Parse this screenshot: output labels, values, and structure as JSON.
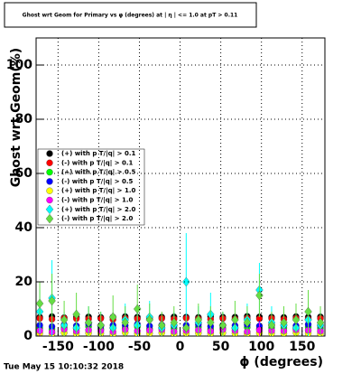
{
  "chart_data": {
    "type": "scatter",
    "title": "Ghost wrt Geom for Primary vs φ (degrees) at | η | <= 1.0 at pT > 0.11",
    "x_label": "ϕ (degrees)",
    "y_label": "Ghost wrt Geom(%)",
    "timestamp": "Tue May 15 10:10:32 2018",
    "xlim": [
      -177,
      178
    ],
    "ylim": [
      0,
      110
    ],
    "xticks": [
      -150,
      -100,
      -50,
      0,
      50,
      100,
      150
    ],
    "yticks": [
      0,
      20,
      40,
      60,
      80,
      100
    ],
    "grid": true,
    "legend": "upper left",
    "x": [
      -172.5,
      -157.5,
      -142.5,
      -127.5,
      -112.5,
      -97.5,
      -82.5,
      -67.5,
      -52.5,
      -37.5,
      -22.5,
      -7.5,
      7.5,
      22.5,
      37.5,
      52.5,
      67.5,
      82.5,
      97.5,
      112.5,
      127.5,
      142.5,
      157.5,
      172.5
    ],
    "series": [
      {
        "name": "(+) with p T/|q| > 0.1",
        "color": "#000000",
        "marker": "circle",
        "values": [
          7,
          7.2,
          6.8,
          7,
          7.1,
          6.9,
          7,
          7.2,
          7,
          6.8,
          7,
          7.1,
          7,
          6.9,
          7.2,
          7,
          7,
          7.3,
          7.1,
          7,
          6.9,
          7.2,
          7,
          7.1
        ],
        "errors": [
          0.5,
          0.5,
          0.5,
          0.5,
          0.5,
          0.5,
          0.5,
          0.5,
          0.5,
          0.5,
          0.5,
          0.5,
          0.5,
          0.5,
          0.5,
          0.5,
          0.5,
          0.5,
          0.5,
          0.5,
          0.5,
          0.5,
          0.5,
          0.5
        ]
      },
      {
        "name": "(-) with p T/|q| > 0.1",
        "color": "#ff0000",
        "marker": "circle",
        "values": [
          6.5,
          6.2,
          6.6,
          6.4,
          6.3,
          6.5,
          6.1,
          6.6,
          6.4,
          6.2,
          6.5,
          6.3,
          6.6,
          6.4,
          6.2,
          6.5,
          6.3,
          6.6,
          6.4,
          6.5,
          6.2,
          6.6,
          6.3,
          6.5
        ],
        "errors": [
          1,
          1,
          1,
          1,
          1,
          1,
          1,
          1,
          1,
          1,
          1,
          1,
          1,
          1,
          1,
          1,
          1,
          1,
          1,
          1,
          1,
          1,
          1,
          1
        ]
      },
      {
        "name": "(+) with p T/|q| > 0.5",
        "color": "#00ff00",
        "marker": "circle",
        "values": [
          3,
          2.5,
          3.2,
          2.8,
          3.5,
          2.6,
          3,
          2.9,
          3.4,
          2.7,
          3.1,
          2.8,
          3,
          3.3,
          2.6,
          3,
          2.9,
          3.2,
          2.7,
          3.1,
          3,
          2.8,
          3.3,
          2.9
        ],
        "errors": [
          2,
          2,
          2,
          2,
          2,
          2,
          2,
          2,
          2,
          2,
          2,
          2,
          2,
          2,
          2,
          2,
          2,
          2,
          2,
          2,
          2,
          2,
          2,
          2
        ]
      },
      {
        "name": "(-) with p T/|q| > 0.5",
        "color": "#0000ff",
        "marker": "circle",
        "values": [
          4,
          3.5,
          4.2,
          3.8,
          4.5,
          3.6,
          4,
          3.9,
          4.4,
          3.7,
          4.1,
          3.8,
          4,
          4.3,
          3.6,
          4,
          3.9,
          4.2,
          3.7,
          4.1,
          4,
          3.8,
          4.3,
          3.9
        ],
        "errors": [
          2,
          2,
          2,
          2,
          2,
          2,
          2,
          2,
          2,
          2,
          2,
          2,
          2,
          2,
          2,
          2,
          2,
          2,
          2,
          2,
          2,
          2,
          2,
          2
        ]
      },
      {
        "name": "(+) with p T/|q| > 1.0",
        "color": "#ffff00",
        "marker": "circle",
        "values": [
          1,
          0.8,
          1.2,
          0.9,
          1.1,
          1,
          0.7,
          1.3,
          0.9,
          1,
          1.2,
          0.8,
          1,
          1.1,
          0.9,
          1.2,
          1,
          0.8,
          1.1,
          1,
          0.9,
          1.2,
          1,
          0.8
        ],
        "errors": [
          1.5,
          1.5,
          1.5,
          1.5,
          1.5,
          1.5,
          1.5,
          1.5,
          1.5,
          1.5,
          1.5,
          1.5,
          1.5,
          1.5,
          1.5,
          1.5,
          1.5,
          1.5,
          1.5,
          1.5,
          1.5,
          1.5,
          1.5,
          1.5
        ]
      },
      {
        "name": "(-) with p T/|q| > 1.0",
        "color": "#ff00ff",
        "marker": "circle",
        "values": [
          2,
          1.5,
          2.5,
          1.8,
          2.2,
          2,
          1.6,
          2.4,
          1.9,
          2.1,
          2.3,
          1.7,
          2,
          2.2,
          1.8,
          2.4,
          2,
          1.6,
          2.2,
          2,
          1.9,
          2.3,
          2.1,
          1.8
        ],
        "errors": [
          3,
          3,
          3,
          3,
          3,
          3,
          3,
          3,
          3,
          3,
          3,
          3,
          3,
          3,
          3,
          3,
          3,
          3,
          3,
          3,
          3,
          3,
          3,
          3
        ]
      },
      {
        "name": "(+) with p T/|q| > 2.0",
        "color": "#00ffff",
        "marker": "diamond",
        "values": [
          9,
          14,
          4,
          3,
          5,
          4,
          3,
          6,
          4,
          7,
          3,
          4,
          20,
          5,
          8,
          4,
          3,
          6,
          17,
          5,
          4,
          3,
          6,
          4
        ],
        "errors": [
          8,
          14,
          5,
          4,
          6,
          5,
          4,
          6,
          5,
          6,
          4,
          5,
          18,
          6,
          8,
          5,
          4,
          6,
          10,
          6,
          5,
          4,
          7,
          5
        ]
      },
      {
        "name": "(-) with p T/|q| > 2.0",
        "color": "#66dd44",
        "marker": "diamond",
        "values": [
          12,
          13,
          6,
          8,
          5,
          4,
          7,
          5,
          10,
          6,
          4,
          5,
          3,
          6,
          5,
          4,
          6,
          5,
          15,
          4,
          5,
          6,
          9,
          5
        ],
        "errors": [
          8,
          10,
          7,
          8,
          6,
          5,
          8,
          6,
          9,
          6,
          5,
          6,
          4,
          6,
          6,
          5,
          7,
          6,
          8,
          5,
          6,
          6,
          8,
          6
        ]
      }
    ]
  }
}
